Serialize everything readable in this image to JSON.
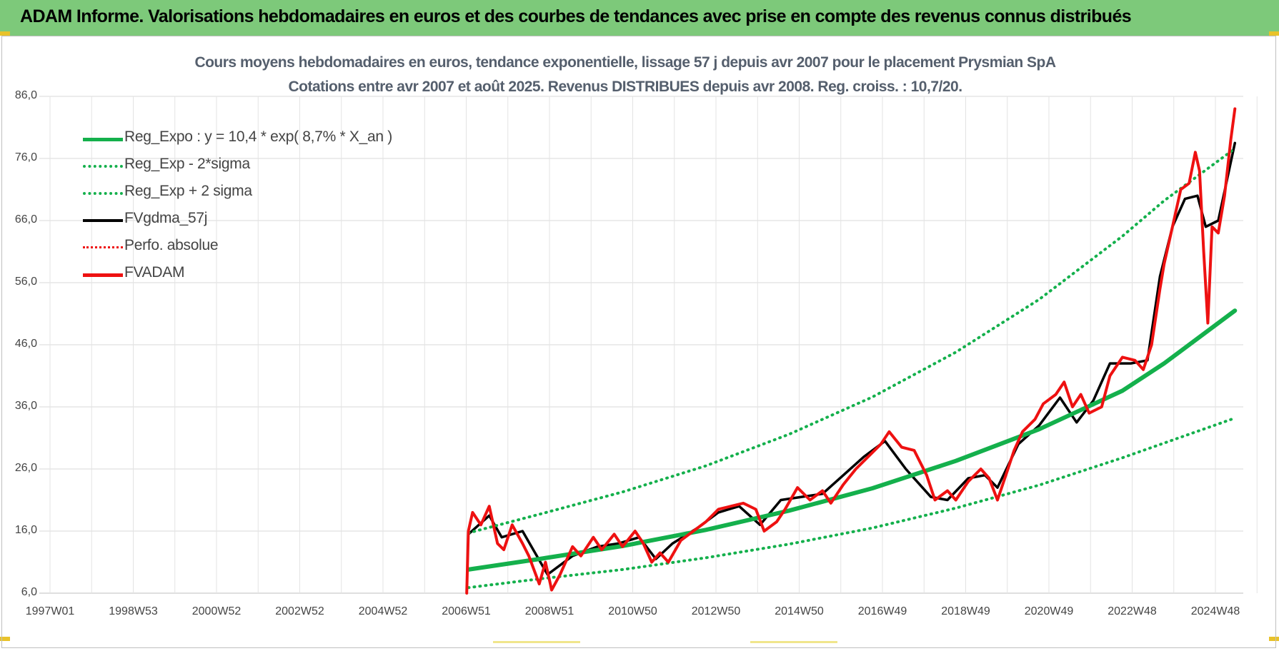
{
  "header": {
    "title": "ADAM Informe. Valorisations hebdomadaires en euros et des courbes de tendances avec prise en compte des revenus connus distribués"
  },
  "colors": {
    "header_bg": "#7dc97a",
    "reg": "#14b04c",
    "black": "#000000",
    "red": "#ee1111"
  },
  "chart_data": {
    "type": "line",
    "title": "Cours moyens hebdomadaires en euros, tendance exponentielle, lissage 57 j depuis avr 2007 pour le placement Prysmian SpA",
    "subtitle": "Cotations entre avr 2007 et août 2025. Revenus DISTRIBUES depuis avr 2008. Reg. croiss. : 10,7/20.",
    "ylim": [
      6,
      86
    ],
    "yticks": [
      "86,0",
      "76,0",
      "66,0",
      "56,0",
      "46,0",
      "36,0",
      "26,0",
      "16,0",
      "6,0"
    ],
    "xlim": [
      1997.0,
      2025.9
    ],
    "xticks": [
      "1997W01",
      "1998W53",
      "2000W52",
      "2002W52",
      "2004W52",
      "2006W51",
      "2008W51",
      "2010W50",
      "2012W50",
      "2014W50",
      "2016W49",
      "2018W49",
      "2020W49",
      "2022W48",
      "2024W48"
    ],
    "grid": true,
    "legend_position": "top-left",
    "series": [
      {
        "name": "Reg_Expo : y = 10,4 * exp( 8,7% *  X_an )",
        "style": "solid-thick",
        "color": "#14b04c",
        "x": [
          2007.3,
          2009.0,
          2011.0,
          2013.0,
          2015.0,
          2017.0,
          2019.0,
          2021.0,
          2023.0,
          2024.0,
          2025.7
        ],
        "y": [
          9.8,
          11.5,
          13.6,
          16.2,
          19.3,
          22.9,
          27.3,
          32.4,
          38.6,
          43.0,
          51.5
        ]
      },
      {
        "name": "Reg_Exp - 2*sigma",
        "style": "dotted",
        "color": "#14b04c",
        "x": [
          2007.3,
          2009.0,
          2011.0,
          2013.0,
          2015.0,
          2017.0,
          2019.0,
          2021.0,
          2023.0,
          2025.7
        ],
        "y": [
          6.9,
          8.3,
          9.8,
          11.7,
          13.9,
          16.5,
          19.7,
          23.4,
          27.8,
          34.2
        ]
      },
      {
        "name": "Reg_Exp + 2 sigma",
        "style": "dotted",
        "color": "#14b04c",
        "x": [
          2007.3,
          2009.0,
          2011.0,
          2013.0,
          2015.0,
          2017.0,
          2019.0,
          2021.0,
          2023.0,
          2024.0,
          2025.7
        ],
        "y": [
          15.7,
          18.7,
          22.3,
          26.5,
          31.6,
          37.6,
          44.8,
          53.3,
          63.5,
          69.2,
          77.6
        ]
      },
      {
        "name": "FVgdma_57j",
        "style": "solid",
        "color": "#000000",
        "x": [
          2007.3,
          2007.8,
          2008.1,
          2008.6,
          2009.2,
          2009.8,
          2010.4,
          2010.9,
          2011.4,
          2011.8,
          2012.2,
          2012.8,
          2013.3,
          2013.8,
          2014.3,
          2014.8,
          2015.3,
          2015.8,
          2016.3,
          2016.8,
          2017.3,
          2017.8,
          2018.4,
          2018.8,
          2019.3,
          2019.7,
          2020.0,
          2020.5,
          2021.0,
          2021.5,
          2021.9,
          2022.3,
          2022.7,
          2023.2,
          2023.6,
          2023.9,
          2024.2,
          2024.5,
          2024.8,
          2025.0,
          2025.3,
          2025.7
        ],
        "y": [
          15.5,
          18.5,
          15.0,
          16.0,
          9.0,
          12.0,
          13.5,
          14.0,
          15.0,
          11.5,
          14.0,
          16.5,
          19.0,
          20.0,
          17.0,
          21.0,
          21.5,
          22.0,
          25.0,
          28.0,
          30.5,
          26.0,
          21.5,
          21.0,
          24.5,
          25.0,
          23.0,
          30.0,
          33.0,
          37.5,
          33.5,
          37.0,
          43.0,
          43.0,
          43.5,
          57.0,
          65.0,
          69.5,
          70.0,
          65.0,
          66.0,
          78.5
        ]
      },
      {
        "name": "Perfo. absolue",
        "style": "dotted",
        "color": "#ee1111",
        "x": [
          2007.3,
          2007.8,
          2008.1,
          2008.6,
          2009.2,
          2009.8,
          2010.4,
          2010.9,
          2011.4,
          2011.8,
          2012.2,
          2012.8,
          2013.3,
          2013.8,
          2014.3,
          2014.8,
          2015.3,
          2015.8,
          2016.3,
          2016.8,
          2017.3,
          2017.8,
          2018.4,
          2018.8,
          2019.3,
          2019.7,
          2020.0,
          2020.5,
          2021.0,
          2021.5,
          2021.9,
          2022.3,
          2022.7,
          2023.2,
          2023.6,
          2023.9,
          2024.2,
          2024.5,
          2024.8,
          2025.0,
          2025.3,
          2025.7
        ],
        "y": [
          15.5,
          18.5,
          15.0,
          16.0,
          9.0,
          12.0,
          13.5,
          14.0,
          15.0,
          11.5,
          14.0,
          16.5,
          19.0,
          20.0,
          17.0,
          21.0,
          21.5,
          22.0,
          25.0,
          28.0,
          30.5,
          26.0,
          21.5,
          21.0,
          24.5,
          25.0,
          23.0,
          30.0,
          33.0,
          37.5,
          33.5,
          37.0,
          43.0,
          43.0,
          43.5,
          57.0,
          65.0,
          69.5,
          70.0,
          65.0,
          66.0,
          78.5
        ]
      },
      {
        "name": "FVADAM",
        "style": "solid-thick",
        "color": "#ee1111",
        "x": [
          2007.26,
          2007.3,
          2007.4,
          2007.6,
          2007.8,
          2008.0,
          2008.15,
          2008.35,
          2008.6,
          2008.75,
          2009.0,
          2009.15,
          2009.3,
          2009.5,
          2009.8,
          2010.0,
          2010.3,
          2010.5,
          2010.8,
          2011.0,
          2011.3,
          2011.5,
          2011.7,
          2011.9,
          2012.1,
          2012.4,
          2012.7,
          2013.0,
          2013.3,
          2013.6,
          2013.9,
          2014.2,
          2014.4,
          2014.7,
          2014.9,
          2015.2,
          2015.5,
          2015.8,
          2016.0,
          2016.3,
          2016.6,
          2016.9,
          2017.2,
          2017.4,
          2017.7,
          2018.0,
          2018.3,
          2018.5,
          2018.8,
          2019.0,
          2019.3,
          2019.6,
          2019.8,
          2020.0,
          2020.2,
          2020.4,
          2020.6,
          2020.9,
          2021.1,
          2021.4,
          2021.6,
          2021.8,
          2022.0,
          2022.2,
          2022.5,
          2022.7,
          2023.0,
          2023.3,
          2023.5,
          2023.7,
          2023.9,
          2024.0,
          2024.2,
          2024.4,
          2024.6,
          2024.75,
          2024.85,
          2024.95,
          2025.05,
          2025.15,
          2025.3,
          2025.45,
          2025.6,
          2025.7
        ],
        "y": [
          6.0,
          16.0,
          19.0,
          17.0,
          20.0,
          14.0,
          13.0,
          17.0,
          14.0,
          12.0,
          7.5,
          11.0,
          6.5,
          9.0,
          13.5,
          12.0,
          15.0,
          13.0,
          15.5,
          13.5,
          16.0,
          14.0,
          11.0,
          12.5,
          11.0,
          14.5,
          16.0,
          17.5,
          19.5,
          20.0,
          20.5,
          19.5,
          16.0,
          17.5,
          19.5,
          23.0,
          21.0,
          22.5,
          20.5,
          23.5,
          26.0,
          28.0,
          30.0,
          32.0,
          29.5,
          29.0,
          25.0,
          21.0,
          22.5,
          21.0,
          24.0,
          26.0,
          24.5,
          21.0,
          25.0,
          29.0,
          32.0,
          34.0,
          36.5,
          38.0,
          40.0,
          36.0,
          38.0,
          35.0,
          36.0,
          41.0,
          44.0,
          43.5,
          42.0,
          46.0,
          55.0,
          59.0,
          65.0,
          71.0,
          72.0,
          77.0,
          74.0,
          61.0,
          49.5,
          65.0,
          64.0,
          70.0,
          79.0,
          84.0
        ]
      }
    ]
  }
}
